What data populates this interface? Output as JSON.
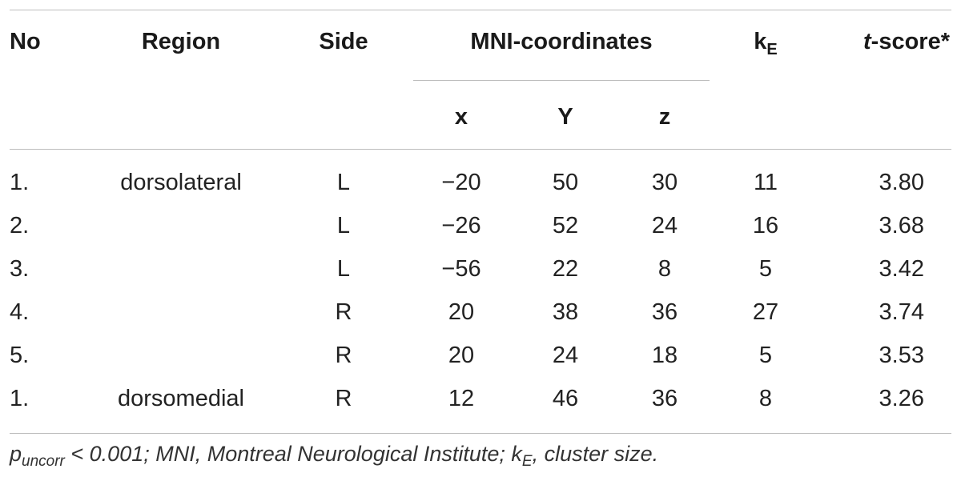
{
  "table": {
    "headers": {
      "no": "No",
      "region": "Region",
      "side": "Side",
      "mni": "MNI-coordinates",
      "k_main": "k",
      "k_sub": "E",
      "t_italic": "t",
      "t_rest": "-score*",
      "x": "x",
      "y": "Y",
      "z": "z"
    },
    "rows": [
      {
        "no": "1.",
        "region": "dorsolateral",
        "side": "L",
        "x": "−20",
        "y": "50",
        "z": "30",
        "k": "11",
        "t": "3.80"
      },
      {
        "no": "2.",
        "region": "",
        "side": "L",
        "x": "−26",
        "y": "52",
        "z": "24",
        "k": "16",
        "t": "3.68"
      },
      {
        "no": "3.",
        "region": "",
        "side": "L",
        "x": "−56",
        "y": "22",
        "z": "8",
        "k": "5",
        "t": "3.42"
      },
      {
        "no": "4.",
        "region": "",
        "side": "R",
        "x": "20",
        "y": "38",
        "z": "36",
        "k": "27",
        "t": "3.74"
      },
      {
        "no": "5.",
        "region": "",
        "side": "R",
        "x": "20",
        "y": "24",
        "z": "18",
        "k": "5",
        "t": "3.53"
      },
      {
        "no": "1.",
        "region": "dorsomedial",
        "side": "R",
        "x": "12",
        "y": "46",
        "z": "36",
        "k": "8",
        "t": "3.26"
      }
    ]
  },
  "footnote": {
    "p": "p",
    "p_sub": "uncorr",
    "part1": " < 0.001; MNI, Montreal Neurological Institute; k",
    "k_sub": "E",
    "part2": ", cluster size."
  }
}
